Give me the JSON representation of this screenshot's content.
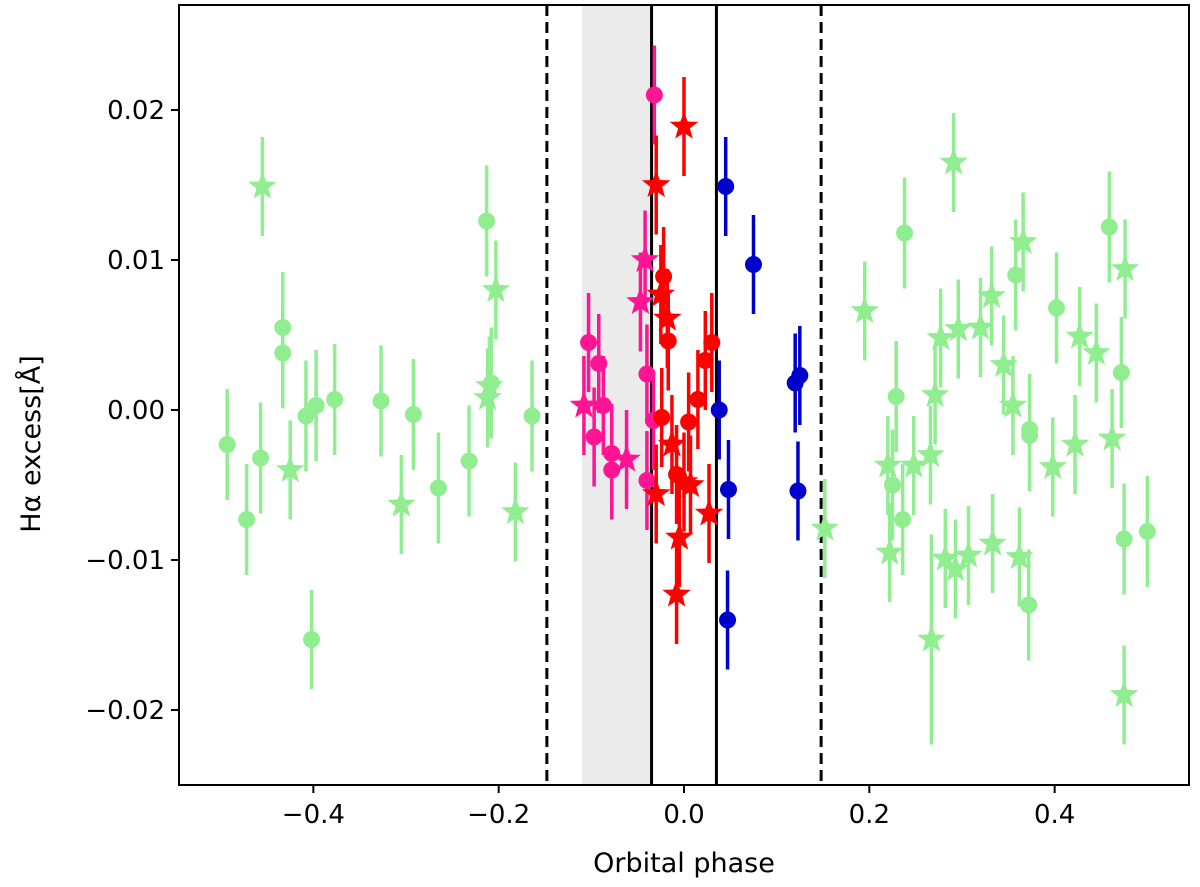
{
  "chart_data": {
    "type": "scatter",
    "xlabel": "Orbital phase",
    "ylabel": "Hα excess[Å]",
    "xlim": [
      -0.545,
      0.545
    ],
    "ylim": [
      -0.025,
      0.027
    ],
    "xticks": [
      -0.4,
      -0.2,
      0.0,
      0.2,
      0.4
    ],
    "xtick_labels": [
      "−0.4",
      "−0.2",
      "0.0",
      "0.2",
      "0.4"
    ],
    "yticks": [
      -0.02,
      -0.01,
      0.0,
      0.01,
      0.02
    ],
    "ytick_labels": [
      "−0.02",
      "−0.01",
      "0.00",
      "0.01",
      "0.02"
    ],
    "shaded_region": {
      "x0": -0.11,
      "x1": -0.035,
      "color": "#ebebeb"
    },
    "vertical_lines": [
      {
        "x": -0.148,
        "style": "dashed"
      },
      {
        "x": -0.035,
        "style": "solid"
      },
      {
        "x": 0.035,
        "style": "solid"
      },
      {
        "x": 0.148,
        "style": "dashed"
      }
    ],
    "colors": {
      "out_of_transit": "#90ee90",
      "ingress": "#ff1493",
      "in_transit": "#ff0000",
      "egress": "#0000cd"
    },
    "series": [
      {
        "name": "out-of-transit circles",
        "color_key": "out_of_transit",
        "marker": "circle",
        "points": [
          {
            "x": -0.493,
            "y": -0.0023,
            "err": 0.0037
          },
          {
            "x": -0.472,
            "y": -0.0073,
            "err": 0.0037
          },
          {
            "x": -0.457,
            "y": -0.0032,
            "err": 0.0037
          },
          {
            "x": -0.433,
            "y": 0.0055,
            "err": 0.0037
          },
          {
            "x": -0.433,
            "y": 0.0038,
            "err": 0.0037
          },
          {
            "x": -0.408,
            "y": -0.0004,
            "err": 0.0037
          },
          {
            "x": -0.402,
            "y": -0.0153,
            "err": 0.0033
          },
          {
            "x": -0.397,
            "y": 0.0003,
            "err": 0.0037
          },
          {
            "x": -0.377,
            "y": 0.0007,
            "err": 0.0037
          },
          {
            "x": -0.327,
            "y": 0.0006,
            "err": 0.0037
          },
          {
            "x": -0.292,
            "y": -0.0003,
            "err": 0.0037
          },
          {
            "x": -0.265,
            "y": -0.0052,
            "err": 0.0037
          },
          {
            "x": -0.232,
            "y": -0.0034,
            "err": 0.0037
          },
          {
            "x": -0.213,
            "y": 0.0126,
            "err": 0.0037
          },
          {
            "x": -0.208,
            "y": 0.0018,
            "err": 0.0037
          },
          {
            "x": -0.164,
            "y": -0.0004,
            "err": 0.0037
          },
          {
            "x": 0.229,
            "y": 0.0009,
            "err": 0.0037
          },
          {
            "x": 0.225,
            "y": -0.005,
            "err": 0.0037
          },
          {
            "x": 0.236,
            "y": -0.0073,
            "err": 0.0037
          },
          {
            "x": 0.238,
            "y": 0.0118,
            "err": 0.0037
          },
          {
            "x": 0.358,
            "y": 0.009,
            "err": 0.0037
          },
          {
            "x": 0.372,
            "y": -0.013,
            "err": 0.0037
          },
          {
            "x": 0.373,
            "y": -0.0013,
            "err": 0.0037
          },
          {
            "x": 0.373,
            "y": -0.0017,
            "err": 0.0037
          },
          {
            "x": 0.402,
            "y": 0.0068,
            "err": 0.0037
          },
          {
            "x": 0.459,
            "y": 0.0122,
            "err": 0.0037
          },
          {
            "x": 0.472,
            "y": 0.0025,
            "err": 0.0037
          },
          {
            "x": 0.475,
            "y": -0.0086,
            "err": 0.0037
          },
          {
            "x": 0.5,
            "y": -0.0081,
            "err": 0.0037
          }
        ]
      },
      {
        "name": "out-of-transit stars",
        "color_key": "out_of_transit",
        "marker": "star",
        "points": [
          {
            "x": -0.455,
            "y": 0.0149,
            "err": 0.0033
          },
          {
            "x": -0.425,
            "y": -0.004,
            "err": 0.0033
          },
          {
            "x": -0.305,
            "y": -0.0063,
            "err": 0.0033
          },
          {
            "x": -0.212,
            "y": 0.0008,
            "err": 0.0033
          },
          {
            "x": -0.21,
            "y": 0.0016,
            "err": 0.0033
          },
          {
            "x": -0.203,
            "y": 0.008,
            "err": 0.0033
          },
          {
            "x": -0.182,
            "y": -0.0068,
            "err": 0.0033
          },
          {
            "x": 0.152,
            "y": -0.0079,
            "err": 0.0033
          },
          {
            "x": 0.195,
            "y": 0.0066,
            "err": 0.0033
          },
          {
            "x": 0.22,
            "y": -0.0037,
            "err": 0.0033
          },
          {
            "x": 0.222,
            "y": -0.0095,
            "err": 0.0033
          },
          {
            "x": 0.248,
            "y": -0.0037,
            "err": 0.0033
          },
          {
            "x": 0.266,
            "y": -0.003,
            "err": 0.0033
          },
          {
            "x": 0.267,
            "y": -0.0153,
            "err": 0.007
          },
          {
            "x": 0.271,
            "y": 0.001,
            "err": 0.0033
          },
          {
            "x": 0.277,
            "y": 0.0048,
            "err": 0.0033
          },
          {
            "x": 0.282,
            "y": -0.0099,
            "err": 0.0033
          },
          {
            "x": 0.291,
            "y": 0.0165,
            "err": 0.0033
          },
          {
            "x": 0.293,
            "y": -0.0106,
            "err": 0.0033
          },
          {
            "x": 0.296,
            "y": 0.0054,
            "err": 0.0033
          },
          {
            "x": 0.307,
            "y": -0.0097,
            "err": 0.0033
          },
          {
            "x": 0.32,
            "y": 0.0055,
            "err": 0.0033
          },
          {
            "x": 0.332,
            "y": 0.0076,
            "err": 0.0033
          },
          {
            "x": 0.333,
            "y": -0.0089,
            "err": 0.0033
          },
          {
            "x": 0.345,
            "y": 0.003,
            "err": 0.0033
          },
          {
            "x": 0.355,
            "y": 0.0003,
            "err": 0.0033
          },
          {
            "x": 0.362,
            "y": -0.0098,
            "err": 0.0033
          },
          {
            "x": 0.366,
            "y": 0.0112,
            "err": 0.0033
          },
          {
            "x": 0.398,
            "y": -0.0038,
            "err": 0.0033
          },
          {
            "x": 0.422,
            "y": -0.0023,
            "err": 0.0033
          },
          {
            "x": 0.427,
            "y": 0.0049,
            "err": 0.0033
          },
          {
            "x": 0.445,
            "y": 0.0038,
            "err": 0.0033
          },
          {
            "x": 0.462,
            "y": -0.0019,
            "err": 0.0033
          },
          {
            "x": 0.475,
            "y": -0.019,
            "err": 0.0033
          },
          {
            "x": 0.476,
            "y": 0.0094,
            "err": 0.0033
          }
        ]
      },
      {
        "name": "ingress circles",
        "color_key": "ingress",
        "marker": "circle",
        "points": [
          {
            "x": -0.103,
            "y": 0.0045,
            "err": 0.0033
          },
          {
            "x": -0.097,
            "y": -0.0018,
            "err": 0.0033
          },
          {
            "x": -0.092,
            "y": 0.0031,
            "err": 0.0033
          },
          {
            "x": -0.087,
            "y": 0.0003,
            "err": 0.0033
          },
          {
            "x": -0.078,
            "y": -0.0029,
            "err": 0.0033
          },
          {
            "x": -0.078,
            "y": -0.004,
            "err": 0.0033
          },
          {
            "x": -0.04,
            "y": 0.0024,
            "err": 0.0033
          },
          {
            "x": -0.04,
            "y": -0.0047,
            "err": 0.0033
          },
          {
            "x": -0.033,
            "y": -0.0007,
            "err": 0.0033
          },
          {
            "x": -0.032,
            "y": 0.021,
            "err": 0.0033
          }
        ]
      },
      {
        "name": "ingress stars",
        "color_key": "ingress",
        "marker": "star",
        "points": [
          {
            "x": -0.108,
            "y": 0.0003,
            "err": 0.0033
          },
          {
            "x": -0.062,
            "y": -0.0033,
            "err": 0.0033
          },
          {
            "x": -0.047,
            "y": 0.0072,
            "err": 0.0033
          },
          {
            "x": -0.042,
            "y": 0.01,
            "err": 0.0033
          }
        ]
      },
      {
        "name": "in-transit circles",
        "color_key": "in_transit",
        "marker": "circle",
        "points": [
          {
            "x": -0.024,
            "y": -0.0005,
            "err": 0.0033
          },
          {
            "x": -0.022,
            "y": 0.0089,
            "err": 0.0033
          },
          {
            "x": -0.017,
            "y": 0.0046,
            "err": 0.0033
          },
          {
            "x": -0.008,
            "y": -0.0043,
            "err": 0.0033
          },
          {
            "x": 0.005,
            "y": -0.0008,
            "err": 0.0033
          },
          {
            "x": 0.015,
            "y": 0.0007,
            "err": 0.0033
          },
          {
            "x": 0.023,
            "y": 0.0033,
            "err": 0.0033
          },
          {
            "x": 0.03,
            "y": 0.0045,
            "err": 0.0033
          }
        ]
      },
      {
        "name": "in-transit stars",
        "color_key": "in_transit",
        "marker": "star",
        "points": [
          {
            "x": -0.03,
            "y": 0.015,
            "err": 0.0033
          },
          {
            "x": -0.03,
            "y": -0.0056,
            "err": 0.0033
          },
          {
            "x": -0.025,
            "y": 0.0077,
            "err": 0.0033
          },
          {
            "x": -0.018,
            "y": 0.0061,
            "err": 0.0033
          },
          {
            "x": -0.013,
            "y": -0.0023,
            "err": 0.0033
          },
          {
            "x": -0.008,
            "y": -0.0123,
            "err": 0.0033
          },
          {
            "x": -0.005,
            "y": -0.0085,
            "err": 0.0033
          },
          {
            "x": 0.0,
            "y": 0.0189,
            "err": 0.0033
          },
          {
            "x": 0.0,
            "y": -0.0048,
            "err": 0.0033
          },
          {
            "x": 0.007,
            "y": -0.005,
            "err": 0.0033
          },
          {
            "x": 0.027,
            "y": -0.0069,
            "err": 0.0033
          }
        ]
      },
      {
        "name": "egress circles",
        "color_key": "egress",
        "marker": "circle",
        "points": [
          {
            "x": 0.038,
            "y": 0.0,
            "err": 0.0033
          },
          {
            "x": 0.045,
            "y": 0.0149,
            "err": 0.0033
          },
          {
            "x": 0.047,
            "y": -0.014,
            "err": 0.0033
          },
          {
            "x": 0.048,
            "y": -0.0053,
            "err": 0.0033
          },
          {
            "x": 0.075,
            "y": 0.0097,
            "err": 0.0033
          },
          {
            "x": 0.12,
            "y": 0.0018,
            "err": 0.0033
          },
          {
            "x": 0.123,
            "y": -0.0054,
            "err": 0.0033
          },
          {
            "x": 0.125,
            "y": 0.0023,
            "err": 0.0033
          }
        ]
      }
    ]
  }
}
